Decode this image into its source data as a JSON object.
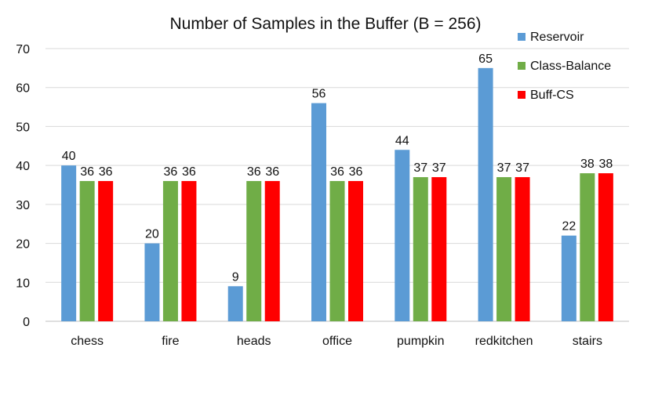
{
  "chart_data": {
    "type": "bar",
    "title": "Number of Samples in the Buffer (B = 256)",
    "categories": [
      "chess",
      "fire",
      "heads",
      "office",
      "pumpkin",
      "redkitchen",
      "stairs"
    ],
    "series": [
      {
        "name": "Reservoir",
        "color": "#5b9bd5",
        "values": [
          40,
          20,
          9,
          56,
          44,
          65,
          22
        ]
      },
      {
        "name": "Class-Balance",
        "color": "#70ad47",
        "values": [
          36,
          36,
          36,
          36,
          37,
          37,
          38
        ]
      },
      {
        "name": "Buff-CS",
        "color": "#ff0000",
        "values": [
          36,
          36,
          36,
          36,
          37,
          37,
          38
        ]
      }
    ],
    "ylim": [
      0,
      70
    ],
    "yticks": [
      0,
      10,
      20,
      30,
      40,
      50,
      60,
      70
    ],
    "grid": true,
    "legend": "top-right",
    "data_labels": true
  }
}
